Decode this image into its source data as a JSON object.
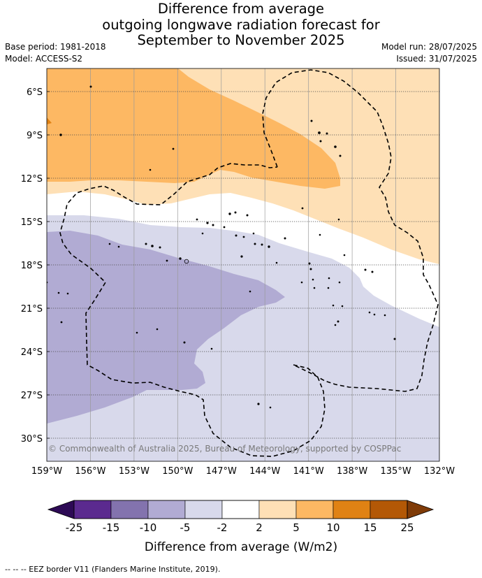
{
  "title": {
    "line1": "Difference from average",
    "line2": "outgoing longwave radiation forecast for",
    "line3": "September to November 2025"
  },
  "meta": {
    "base_period": "Base period: 1981-2018",
    "model": "Model: ACCESS-S2",
    "model_run": "Model run: 28/07/2025",
    "issued": "Issued: 31/07/2025"
  },
  "axes": {
    "lon_labels": [
      "159°W",
      "156°W",
      "153°W",
      "150°W",
      "147°W",
      "144°W",
      "141°W",
      "138°W",
      "135°W",
      "132°W"
    ],
    "lat_labels": [
      "6°S",
      "9°S",
      "12°S",
      "15°S",
      "18°S",
      "21°S",
      "24°S",
      "27°S",
      "30°S"
    ],
    "lon_range": [
      -159,
      -132
    ],
    "lat_range": [
      -4.5,
      -31.5
    ]
  },
  "copyright": "© Commonwealth of Australia 2025, Bureau of Meteorology, supported by COSPPac",
  "colorbar": {
    "title": "Difference from average (W/m2)",
    "tick_labels": [
      "-25",
      "-15",
      "-10",
      "-5",
      "-2",
      "2",
      "5",
      "10",
      "15",
      "25"
    ],
    "colors": [
      "#5b2a8f",
      "#8373ae",
      "#b1abd3",
      "#d8d9eb",
      "#ffffff",
      "#fee0b6",
      "#fdb863",
      "#e08214",
      "#b35806"
    ],
    "extend_low_color": "#2d0a55",
    "extend_high_color": "#7f3b08"
  },
  "footer": "--  --  -- EEZ border V11 (Flanders Marine Institute, 2019)."
}
